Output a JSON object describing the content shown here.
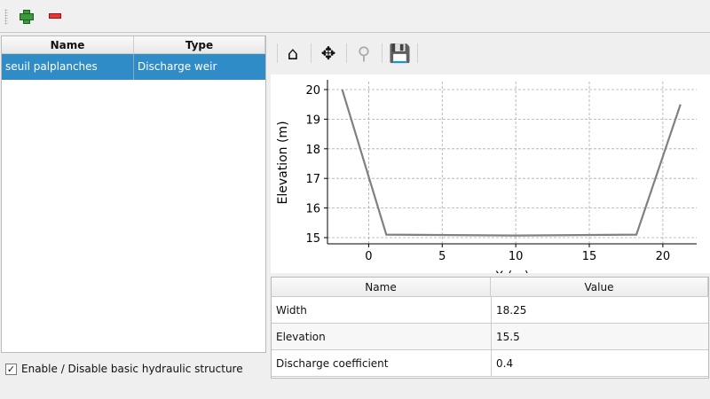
{
  "toolbar": {
    "add_icon": "plus-icon",
    "remove_icon": "minus-icon"
  },
  "structures_table": {
    "headers": [
      "Name",
      "Type"
    ],
    "rows": [
      {
        "name": "seuil palplanches",
        "type": "Discharge weir",
        "selected": true
      }
    ]
  },
  "enable_checkbox": {
    "label": "Enable / Disable basic hydraulic structure",
    "checked": true,
    "mark": "✓"
  },
  "plot_toolbar": [
    "home-icon",
    "pan-icon",
    "zoom-icon",
    "save-icon"
  ],
  "chart_data": {
    "type": "line",
    "xlabel": "X (m)",
    "ylabel": "Elevation (m)",
    "xlim": [
      -2.8,
      22.3
    ],
    "ylim": [
      14.79,
      20.27
    ],
    "xticks": [
      0,
      5,
      10,
      15,
      20
    ],
    "yticks": [
      15,
      16,
      17,
      18,
      19,
      20
    ],
    "grid": true,
    "series": [
      {
        "color": "#808080",
        "x": [
          -1.8,
          1.2,
          10,
          18.2,
          21.2
        ],
        "y": [
          20.0,
          15.1,
          15.07,
          15.1,
          19.5
        ]
      }
    ]
  },
  "params_table": {
    "headers": [
      "Name",
      "Value"
    ],
    "rows": [
      {
        "name": "Width",
        "value": "18.25"
      },
      {
        "name": "Elevation",
        "value": "15.5"
      },
      {
        "name": "Discharge coefficient",
        "value": "0.4"
      }
    ]
  }
}
